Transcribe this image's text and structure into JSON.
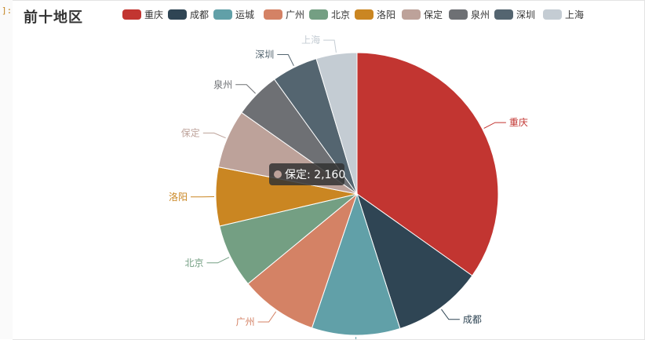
{
  "notebook": {
    "prompt_mark": "]:"
  },
  "chart_data": {
    "type": "pie",
    "title": "前十地区",
    "legend_position": "top",
    "categories": [
      "重庆",
      "成都",
      "运城",
      "广州",
      "北京",
      "洛阳",
      "保定",
      "泉州",
      "深圳",
      "上海"
    ],
    "values": [
      11200,
      3300,
      3250,
      2850,
      2350,
      2160,
      2160,
      1700,
      1700,
      1500
    ],
    "colors": [
      "#c23531",
      "#2f4554",
      "#61a0a8",
      "#d48265",
      "#749f83",
      "#ca8622",
      "#bda29a",
      "#6e7074",
      "#546570",
      "#c4ccd3"
    ],
    "label_colors": [
      "#c23531",
      "#2f4554",
      "#61a0a8",
      "#d48265",
      "#749f83",
      "#ca8622",
      "#bda29a",
      "#6e7074",
      "#546570",
      "#c4ccd3"
    ],
    "tooltip": {
      "label": "保定: 2,160",
      "category": "保定",
      "color": "#bda29a"
    }
  }
}
